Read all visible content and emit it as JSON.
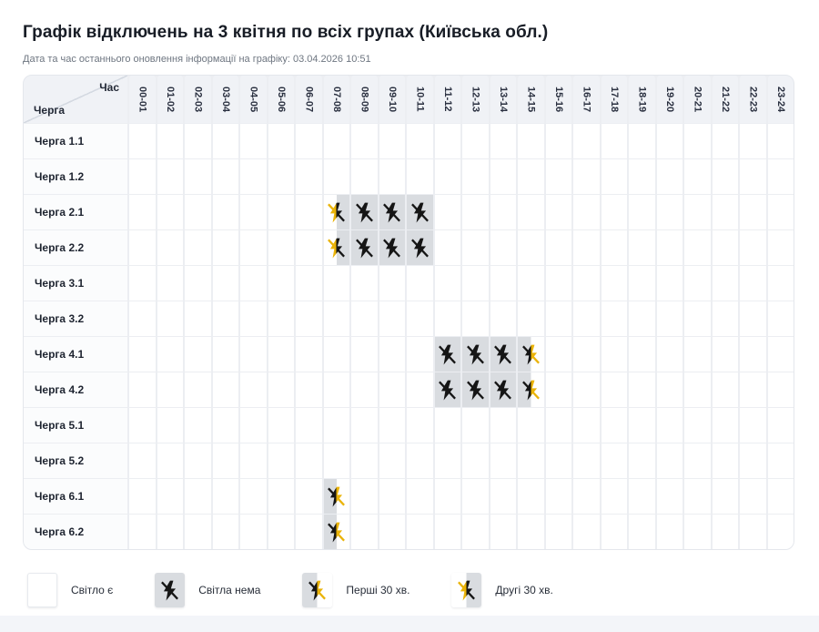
{
  "page": {
    "title": "Графік відключень на 3 квітня по всіх групах (Київська обл.)",
    "updated_text": "Дата та час останнього оновлення інформації на графіку: 03.04.2026 10:51"
  },
  "table": {
    "corner": {
      "time_label": "Час",
      "group_label": "Черга"
    },
    "time_slots": [
      "00-01",
      "01-02",
      "02-03",
      "03-04",
      "04-05",
      "05-06",
      "06-07",
      "07-08",
      "08-09",
      "09-10",
      "10-11",
      "11-12",
      "12-13",
      "13-14",
      "14-15",
      "15-16",
      "16-17",
      "17-18",
      "18-19",
      "19-20",
      "20-21",
      "21-22",
      "22-23",
      "23-24"
    ],
    "cell_states_key": {
      "on": "світло є",
      "off": "світла нема",
      "first30": "перші 30 хв. немає",
      "second30": "другі 30 хв. немає"
    },
    "rows": [
      {
        "label": "Черга 1.1",
        "cells": [
          "on",
          "on",
          "on",
          "on",
          "on",
          "on",
          "on",
          "on",
          "on",
          "on",
          "on",
          "on",
          "on",
          "on",
          "on",
          "on",
          "on",
          "on",
          "on",
          "on",
          "on",
          "on",
          "on",
          "on"
        ]
      },
      {
        "label": "Черга 1.2",
        "cells": [
          "on",
          "on",
          "on",
          "on",
          "on",
          "on",
          "on",
          "on",
          "on",
          "on",
          "on",
          "on",
          "on",
          "on",
          "on",
          "on",
          "on",
          "on",
          "on",
          "on",
          "on",
          "on",
          "on",
          "on"
        ]
      },
      {
        "label": "Черга 2.1",
        "cells": [
          "on",
          "on",
          "on",
          "on",
          "on",
          "on",
          "on",
          "second30",
          "off",
          "off",
          "off",
          "on",
          "on",
          "on",
          "on",
          "on",
          "on",
          "on",
          "on",
          "on",
          "on",
          "on",
          "on",
          "on"
        ]
      },
      {
        "label": "Черга 2.2",
        "cells": [
          "on",
          "on",
          "on",
          "on",
          "on",
          "on",
          "on",
          "second30",
          "off",
          "off",
          "off",
          "on",
          "on",
          "on",
          "on",
          "on",
          "on",
          "on",
          "on",
          "on",
          "on",
          "on",
          "on",
          "on"
        ]
      },
      {
        "label": "Черга 3.1",
        "cells": [
          "on",
          "on",
          "on",
          "on",
          "on",
          "on",
          "on",
          "on",
          "on",
          "on",
          "on",
          "on",
          "on",
          "on",
          "on",
          "on",
          "on",
          "on",
          "on",
          "on",
          "on",
          "on",
          "on",
          "on"
        ]
      },
      {
        "label": "Черга 3.2",
        "cells": [
          "on",
          "on",
          "on",
          "on",
          "on",
          "on",
          "on",
          "on",
          "on",
          "on",
          "on",
          "on",
          "on",
          "on",
          "on",
          "on",
          "on",
          "on",
          "on",
          "on",
          "on",
          "on",
          "on",
          "on"
        ]
      },
      {
        "label": "Черга 4.1",
        "cells": [
          "on",
          "on",
          "on",
          "on",
          "on",
          "on",
          "on",
          "on",
          "on",
          "on",
          "on",
          "off",
          "off",
          "off",
          "first30",
          "on",
          "on",
          "on",
          "on",
          "on",
          "on",
          "on",
          "on",
          "on"
        ]
      },
      {
        "label": "Черга 4.2",
        "cells": [
          "on",
          "on",
          "on",
          "on",
          "on",
          "on",
          "on",
          "on",
          "on",
          "on",
          "on",
          "off",
          "off",
          "off",
          "first30",
          "on",
          "on",
          "on",
          "on",
          "on",
          "on",
          "on",
          "on",
          "on"
        ]
      },
      {
        "label": "Черга 5.1",
        "cells": [
          "on",
          "on",
          "on",
          "on",
          "on",
          "on",
          "on",
          "on",
          "on",
          "on",
          "on",
          "on",
          "on",
          "on",
          "on",
          "on",
          "on",
          "on",
          "on",
          "on",
          "on",
          "on",
          "on",
          "on"
        ]
      },
      {
        "label": "Черга 5.2",
        "cells": [
          "on",
          "on",
          "on",
          "on",
          "on",
          "on",
          "on",
          "on",
          "on",
          "on",
          "on",
          "on",
          "on",
          "on",
          "on",
          "on",
          "on",
          "on",
          "on",
          "on",
          "on",
          "on",
          "on",
          "on"
        ]
      },
      {
        "label": "Черга 6.1",
        "cells": [
          "on",
          "on",
          "on",
          "on",
          "on",
          "on",
          "on",
          "first30",
          "on",
          "on",
          "on",
          "on",
          "on",
          "on",
          "on",
          "on",
          "on",
          "on",
          "on",
          "on",
          "on",
          "on",
          "on",
          "on"
        ]
      },
      {
        "label": "Черга 6.2",
        "cells": [
          "on",
          "on",
          "on",
          "on",
          "on",
          "on",
          "on",
          "first30",
          "on",
          "on",
          "on",
          "on",
          "on",
          "on",
          "on",
          "on",
          "on",
          "on",
          "on",
          "on",
          "on",
          "on",
          "on",
          "on"
        ]
      }
    ]
  },
  "legend": {
    "items": [
      {
        "state": "on",
        "label": "Світло є"
      },
      {
        "state": "off",
        "label": "Світла нема"
      },
      {
        "state": "first30",
        "label": "Перші 30 хв."
      },
      {
        "state": "second30",
        "label": "Другі 30 хв."
      }
    ]
  },
  "colors": {
    "outage_cell": "#d9dce0",
    "bolt_dark": "#151515",
    "bolt_yellow": "#eab308",
    "header_bg": "#f0f2f6",
    "grid_line": "#eceef2",
    "page_footer_strip": "#f3f5f9"
  }
}
